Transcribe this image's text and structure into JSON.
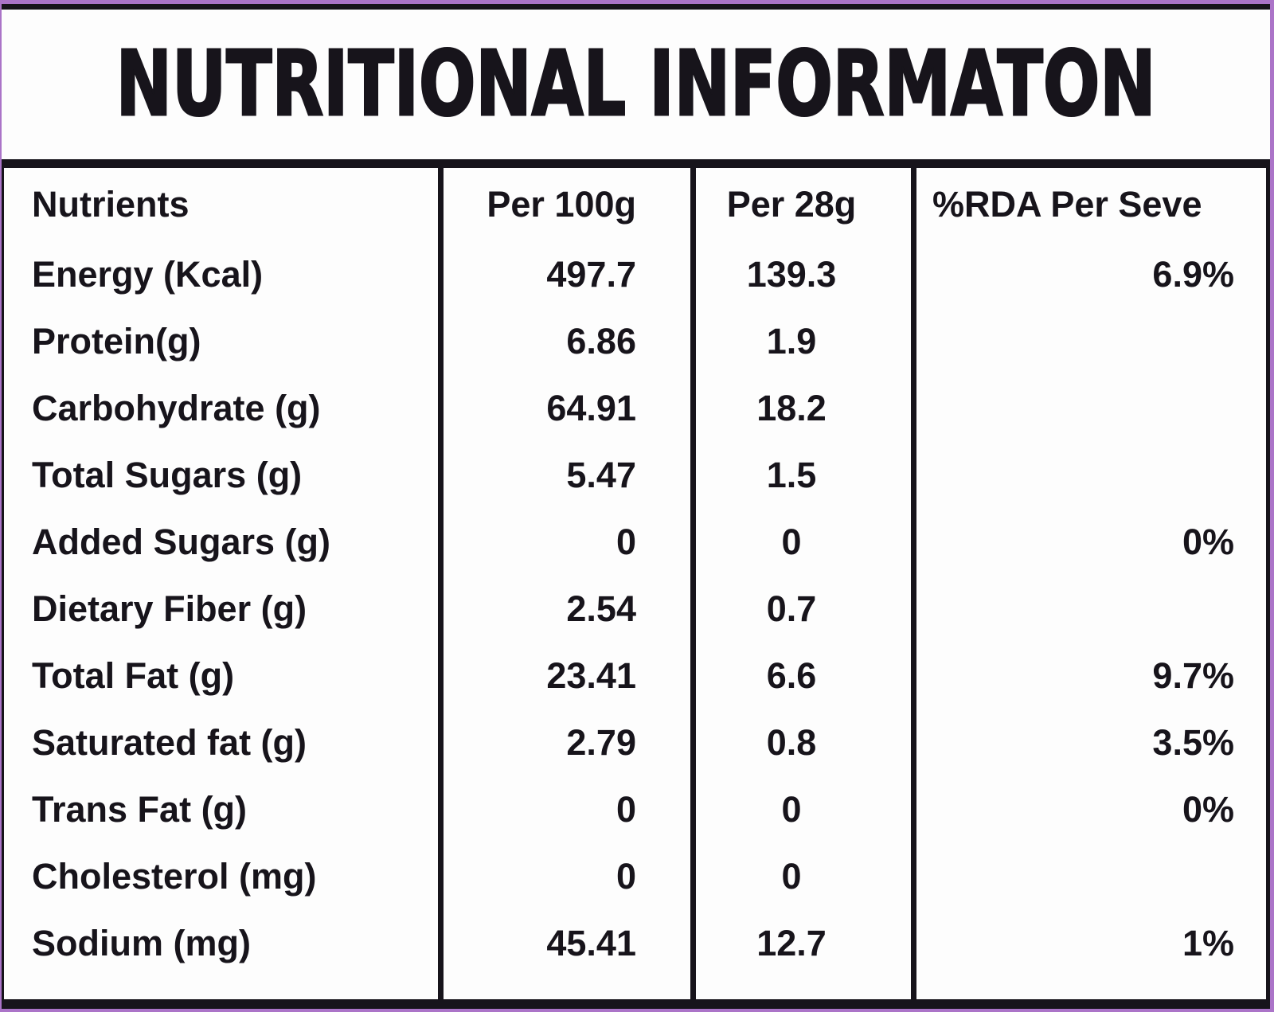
{
  "page": {
    "title": "NUTRITIONAL INFORMATON"
  },
  "colors": {
    "frame_purple": "#ab74c8",
    "border_black": "#17141b",
    "text": "#17141b",
    "background": "#fdfdfd"
  },
  "table": {
    "headers": [
      "Nutrients",
      "Per 100g",
      "Per 28g",
      "%RDA Per Seve"
    ],
    "rows": [
      [
        "Energy (Kcal)",
        "497.7",
        "139.3",
        "6.9%"
      ],
      [
        "Protein(g)",
        "6.86",
        "1.9",
        ""
      ],
      [
        "Carbohydrate (g)",
        "64.91",
        "18.2",
        ""
      ],
      [
        "Total Sugars (g)",
        "5.47",
        "1.5",
        ""
      ],
      [
        "Added Sugars (g)",
        "0",
        "0",
        "0%"
      ],
      [
        "Dietary Fiber (g)",
        "2.54",
        "0.7",
        ""
      ],
      [
        "Total Fat (g)",
        "23.41",
        "6.6",
        "9.7%"
      ],
      [
        "Saturated fat (g)",
        "2.79",
        "0.8",
        "3.5%"
      ],
      [
        "Trans Fat (g)",
        "0",
        "0",
        "0%"
      ],
      [
        "Cholesterol (mg)",
        "0",
        "0",
        ""
      ],
      [
        "Sodium (mg)",
        "45.41",
        "12.7",
        "1%"
      ]
    ]
  },
  "chart_data": {
    "type": "table",
    "title": "NUTRITIONAL INFORMATON",
    "columns": [
      "Nutrients",
      "Per 100g",
      "Per 28g",
      "%RDA Per Seve"
    ],
    "rows": [
      {
        "nutrient": "Energy (Kcal)",
        "per_100g": 497.7,
        "per_28g": 139.3,
        "rda_per_serve": "6.9%"
      },
      {
        "nutrient": "Protein(g)",
        "per_100g": 6.86,
        "per_28g": 1.9,
        "rda_per_serve": ""
      },
      {
        "nutrient": "Carbohydrate (g)",
        "per_100g": 64.91,
        "per_28g": 18.2,
        "rda_per_serve": ""
      },
      {
        "nutrient": "Total Sugars (g)",
        "per_100g": 5.47,
        "per_28g": 1.5,
        "rda_per_serve": ""
      },
      {
        "nutrient": "Added Sugars (g)",
        "per_100g": 0,
        "per_28g": 0,
        "rda_per_serve": "0%"
      },
      {
        "nutrient": "Dietary Fiber (g)",
        "per_100g": 2.54,
        "per_28g": 0.7,
        "rda_per_serve": ""
      },
      {
        "nutrient": "Total Fat (g)",
        "per_100g": 23.41,
        "per_28g": 6.6,
        "rda_per_serve": "9.7%"
      },
      {
        "nutrient": "Saturated fat (g)",
        "per_100g": 2.79,
        "per_28g": 0.8,
        "rda_per_serve": "3.5%"
      },
      {
        "nutrient": "Trans Fat (g)",
        "per_100g": 0,
        "per_28g": 0,
        "rda_per_serve": "0%"
      },
      {
        "nutrient": "Cholesterol (mg)",
        "per_100g": 0,
        "per_28g": 0,
        "rda_per_serve": ""
      },
      {
        "nutrient": "Sodium (mg)",
        "per_100g": 45.41,
        "per_28g": 12.7,
        "rda_per_serve": "1%"
      }
    ]
  }
}
